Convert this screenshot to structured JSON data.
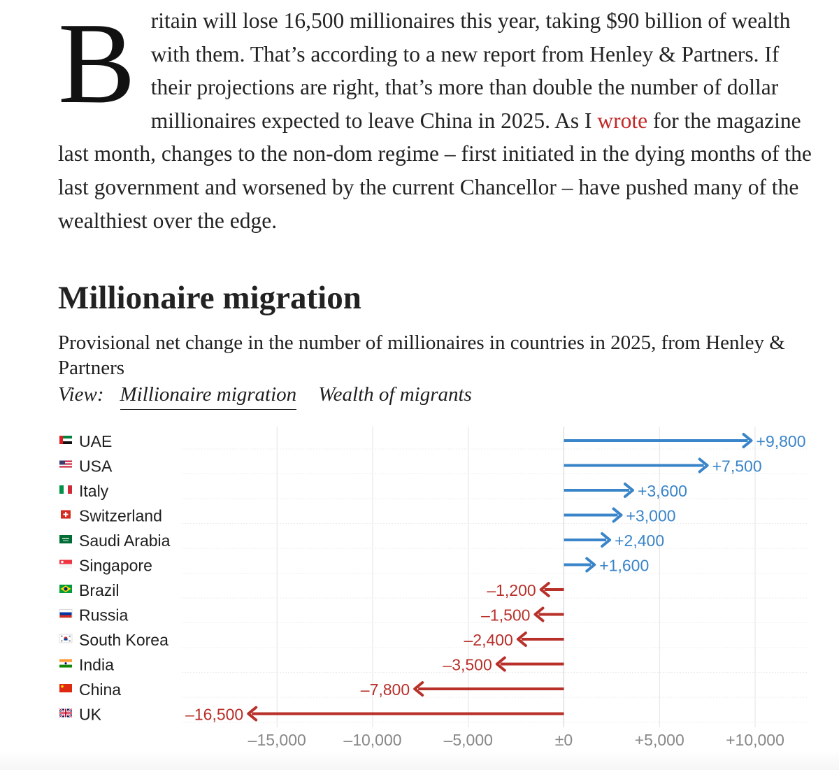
{
  "article": {
    "dropcap": "B",
    "text_before_link": "ritain will lose 16,500 millionaires this year, taking $90 billion of wealth with them. That’s according to a new report from Henley & Partners. If their projections are right, that’s more than double the number of dollar millionaires expected to leave China in 2025. As I ",
    "link_text": "wrote",
    "text_after_link": " for the magazine last month, changes to the non-dom regime – first initiated in the dying months of the last government and worsened by the current Chancellor – have pushed many of the wealthiest over the edge."
  },
  "view": {
    "label": "View:",
    "tabs": [
      {
        "label": "Millionaire migration",
        "active": true
      },
      {
        "label": "Wealth of migrants",
        "active": false
      }
    ]
  },
  "colors": {
    "positive": "#3a84c9",
    "negative": "#b8302a",
    "grid": "#e3e3e3",
    "tick_label": "#888888",
    "link": "#c32727"
  },
  "chart_data": {
    "type": "bar",
    "title": "Millionaire migration",
    "subtitle": "Provisional net change in the number of millionaires in countries in 2025, from Henley & Partners",
    "categories": [
      "UAE",
      "USA",
      "Italy",
      "Switzerland",
      "Saudi Arabia",
      "Singapore",
      "Brazil",
      "Russia",
      "South Korea",
      "India",
      "China",
      "UK"
    ],
    "flags": [
      "flag-uae-icon",
      "flag-usa-icon",
      "flag-italy-icon",
      "flag-switzerland-icon",
      "flag-saudi-arabia-icon",
      "flag-singapore-icon",
      "flag-brazil-icon",
      "flag-russia-icon",
      "flag-south-korea-icon",
      "flag-india-icon",
      "flag-china-icon",
      "flag-uk-icon"
    ],
    "values": [
      9800,
      7500,
      3600,
      3000,
      2400,
      1600,
      -1200,
      -1500,
      -2400,
      -3500,
      -7800,
      -16500
    ],
    "value_labels": [
      "+9,800",
      "+7,500",
      "+3,600",
      "+3,000",
      "+2,400",
      "+1,600",
      "–1,200",
      "–1,500",
      "–2,400",
      "–3,500",
      "–7,800",
      "–16,500"
    ],
    "xlim": [
      -20000,
      12800
    ],
    "xticks": [
      -15000,
      -10000,
      -5000,
      0,
      5000,
      10000
    ],
    "xtick_labels": [
      "–15,000",
      "–10,000",
      "–5,000",
      "±0",
      "+5,000",
      "+10,000"
    ],
    "orientation": "horizontal",
    "marker": "arrow",
    "grid": true,
    "xlabel": "",
    "ylabel": ""
  }
}
